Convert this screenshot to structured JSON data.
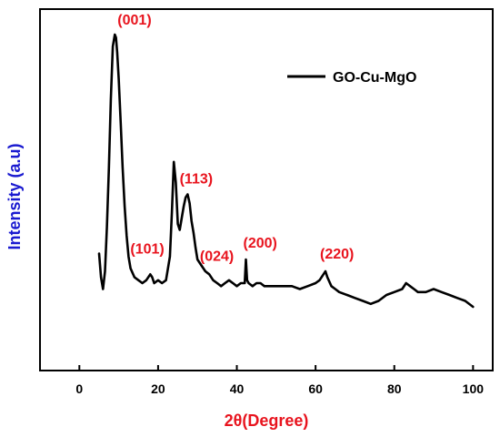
{
  "colors": {
    "line": "#000000",
    "x_title": "#e8141e",
    "y_title": "#1a1ad0",
    "peak_labels": "#e8141e"
  },
  "chart_data": {
    "type": "line",
    "xlabel": "2θ(Degree)",
    "ylabel": "Intensity (a.u)",
    "xlim": [
      -10,
      105
    ],
    "ylim": [
      0,
      100
    ],
    "xticks": [
      0,
      20,
      40,
      60,
      80,
      100
    ],
    "xtick_labels": [
      "0",
      "20",
      "40",
      "60",
      "80",
      "100"
    ],
    "grid": false,
    "legend": {
      "position": "top-right",
      "entries": [
        "GO-Cu-MgO"
      ]
    },
    "series": [
      {
        "name": "GO-Cu-MgO",
        "x": [
          5,
          5.5,
          6,
          6.5,
          7,
          7.5,
          8,
          8.5,
          9,
          9.3,
          9.6,
          10,
          10.5,
          11,
          11.5,
          12,
          12.5,
          13,
          14,
          15,
          16,
          17,
          18,
          18.5,
          19,
          20,
          21,
          22,
          23,
          23.5,
          24,
          24.5,
          25,
          25.5,
          26,
          26.5,
          27,
          27.5,
          28,
          28.5,
          29,
          29.5,
          30,
          31,
          32,
          33,
          34,
          35,
          36,
          37,
          38,
          39,
          40,
          41,
          42,
          42.3,
          42.6,
          43,
          44,
          45,
          46,
          47,
          48,
          49,
          50,
          52,
          54,
          56,
          58,
          60,
          61,
          62,
          62.5,
          63,
          64,
          65,
          66,
          68,
          70,
          72,
          74,
          76,
          78,
          80,
          82,
          83,
          84,
          85,
          86,
          88,
          90,
          92,
          94,
          96,
          98,
          100
        ],
        "y": [
          26,
          18,
          14,
          20,
          35,
          55,
          78,
          96,
          100,
          99,
          94,
          85,
          70,
          55,
          42,
          32,
          25,
          21,
          18,
          17,
          16,
          17,
          19,
          18,
          16,
          17,
          16,
          17,
          25,
          40,
          57,
          50,
          36,
          34,
          38,
          42,
          45,
          46,
          43,
          37,
          33,
          28,
          24,
          22,
          20,
          19,
          17,
          16,
          15,
          16,
          17,
          16,
          15,
          16,
          16,
          24,
          17,
          16,
          15,
          16,
          16,
          15,
          15,
          15,
          15,
          15,
          15,
          14,
          15,
          16,
          17,
          19,
          20,
          18,
          15,
          14,
          13,
          12,
          11,
          10,
          9,
          10,
          12,
          13,
          14,
          16,
          15,
          14,
          13,
          13,
          14,
          13,
          12,
          11,
          10,
          8
        ]
      }
    ],
    "annotations": [
      {
        "text": "(001)",
        "x": 9,
        "y": 100
      },
      {
        "text": "(101)",
        "x": 18.5,
        "y": 18
      },
      {
        "text": "(113)",
        "x": 28,
        "y": 46
      },
      {
        "text": "(024)",
        "x": 35,
        "y": 15
      },
      {
        "text": "(200)",
        "x": 42.3,
        "y": 24
      },
      {
        "text": "(220)",
        "x": 62.5,
        "y": 20
      }
    ]
  }
}
